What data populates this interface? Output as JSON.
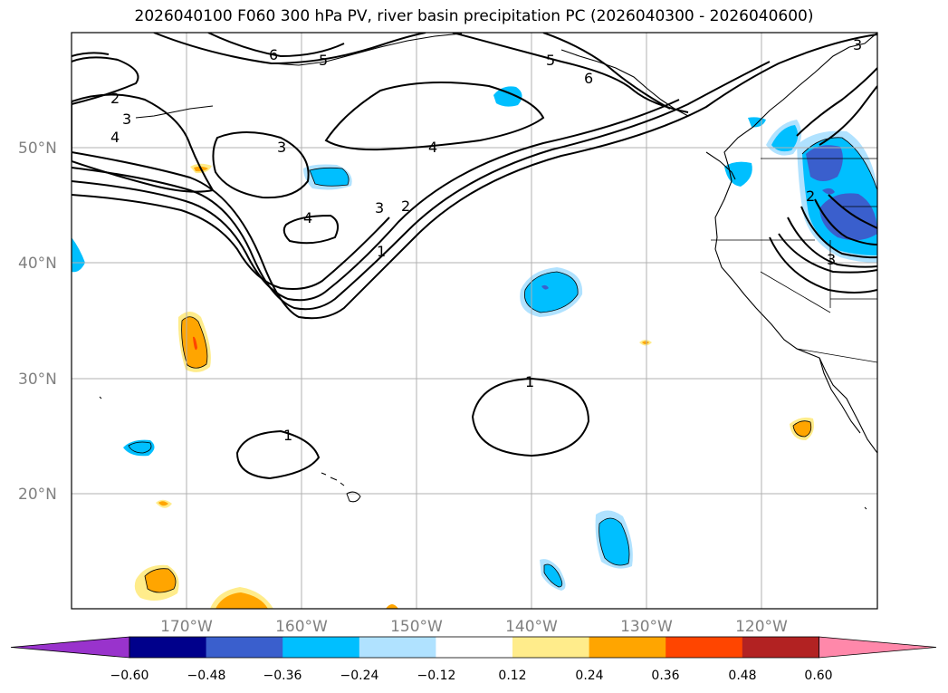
{
  "title": "2026040100 F060 300 hPa PV, river basin precipitation PC (2026040300 - 2026040600)",
  "map": {
    "lat_labels": [
      "50°N",
      "40°N",
      "30°N",
      "20°N"
    ],
    "lon_labels": [
      "170°W",
      "160°W",
      "150°W",
      "140°W",
      "130°W",
      "120°W"
    ],
    "contour_labels": [
      "6",
      "5",
      "2",
      "3",
      "4",
      "3",
      "4",
      "5",
      "6",
      "4",
      "3",
      "2",
      "1",
      "3",
      "2",
      "3",
      "1",
      "1"
    ]
  },
  "colorbar": {
    "ticks": [
      "−0.60",
      "−0.48",
      "−0.36",
      "−0.24",
      "−0.12",
      "0.12",
      "0.24",
      "0.36",
      "0.48",
      "0.60"
    ],
    "colors": [
      "#9933cc",
      "#00008b",
      "#3a5fcd",
      "#00bfff",
      "#b0e2ff",
      "#ffffff",
      "#ffec8b",
      "#ffa500",
      "#ff4500",
      "#b22222",
      "#ff88aa"
    ]
  },
  "colors": {
    "orange": "#ffa500",
    "yellow": "#ffec8b",
    "red": "#ff4500",
    "cyan": "#00bfff",
    "lightblue": "#b0e2ff",
    "blue": "#3a5fcd",
    "purple": "#9933cc"
  }
}
